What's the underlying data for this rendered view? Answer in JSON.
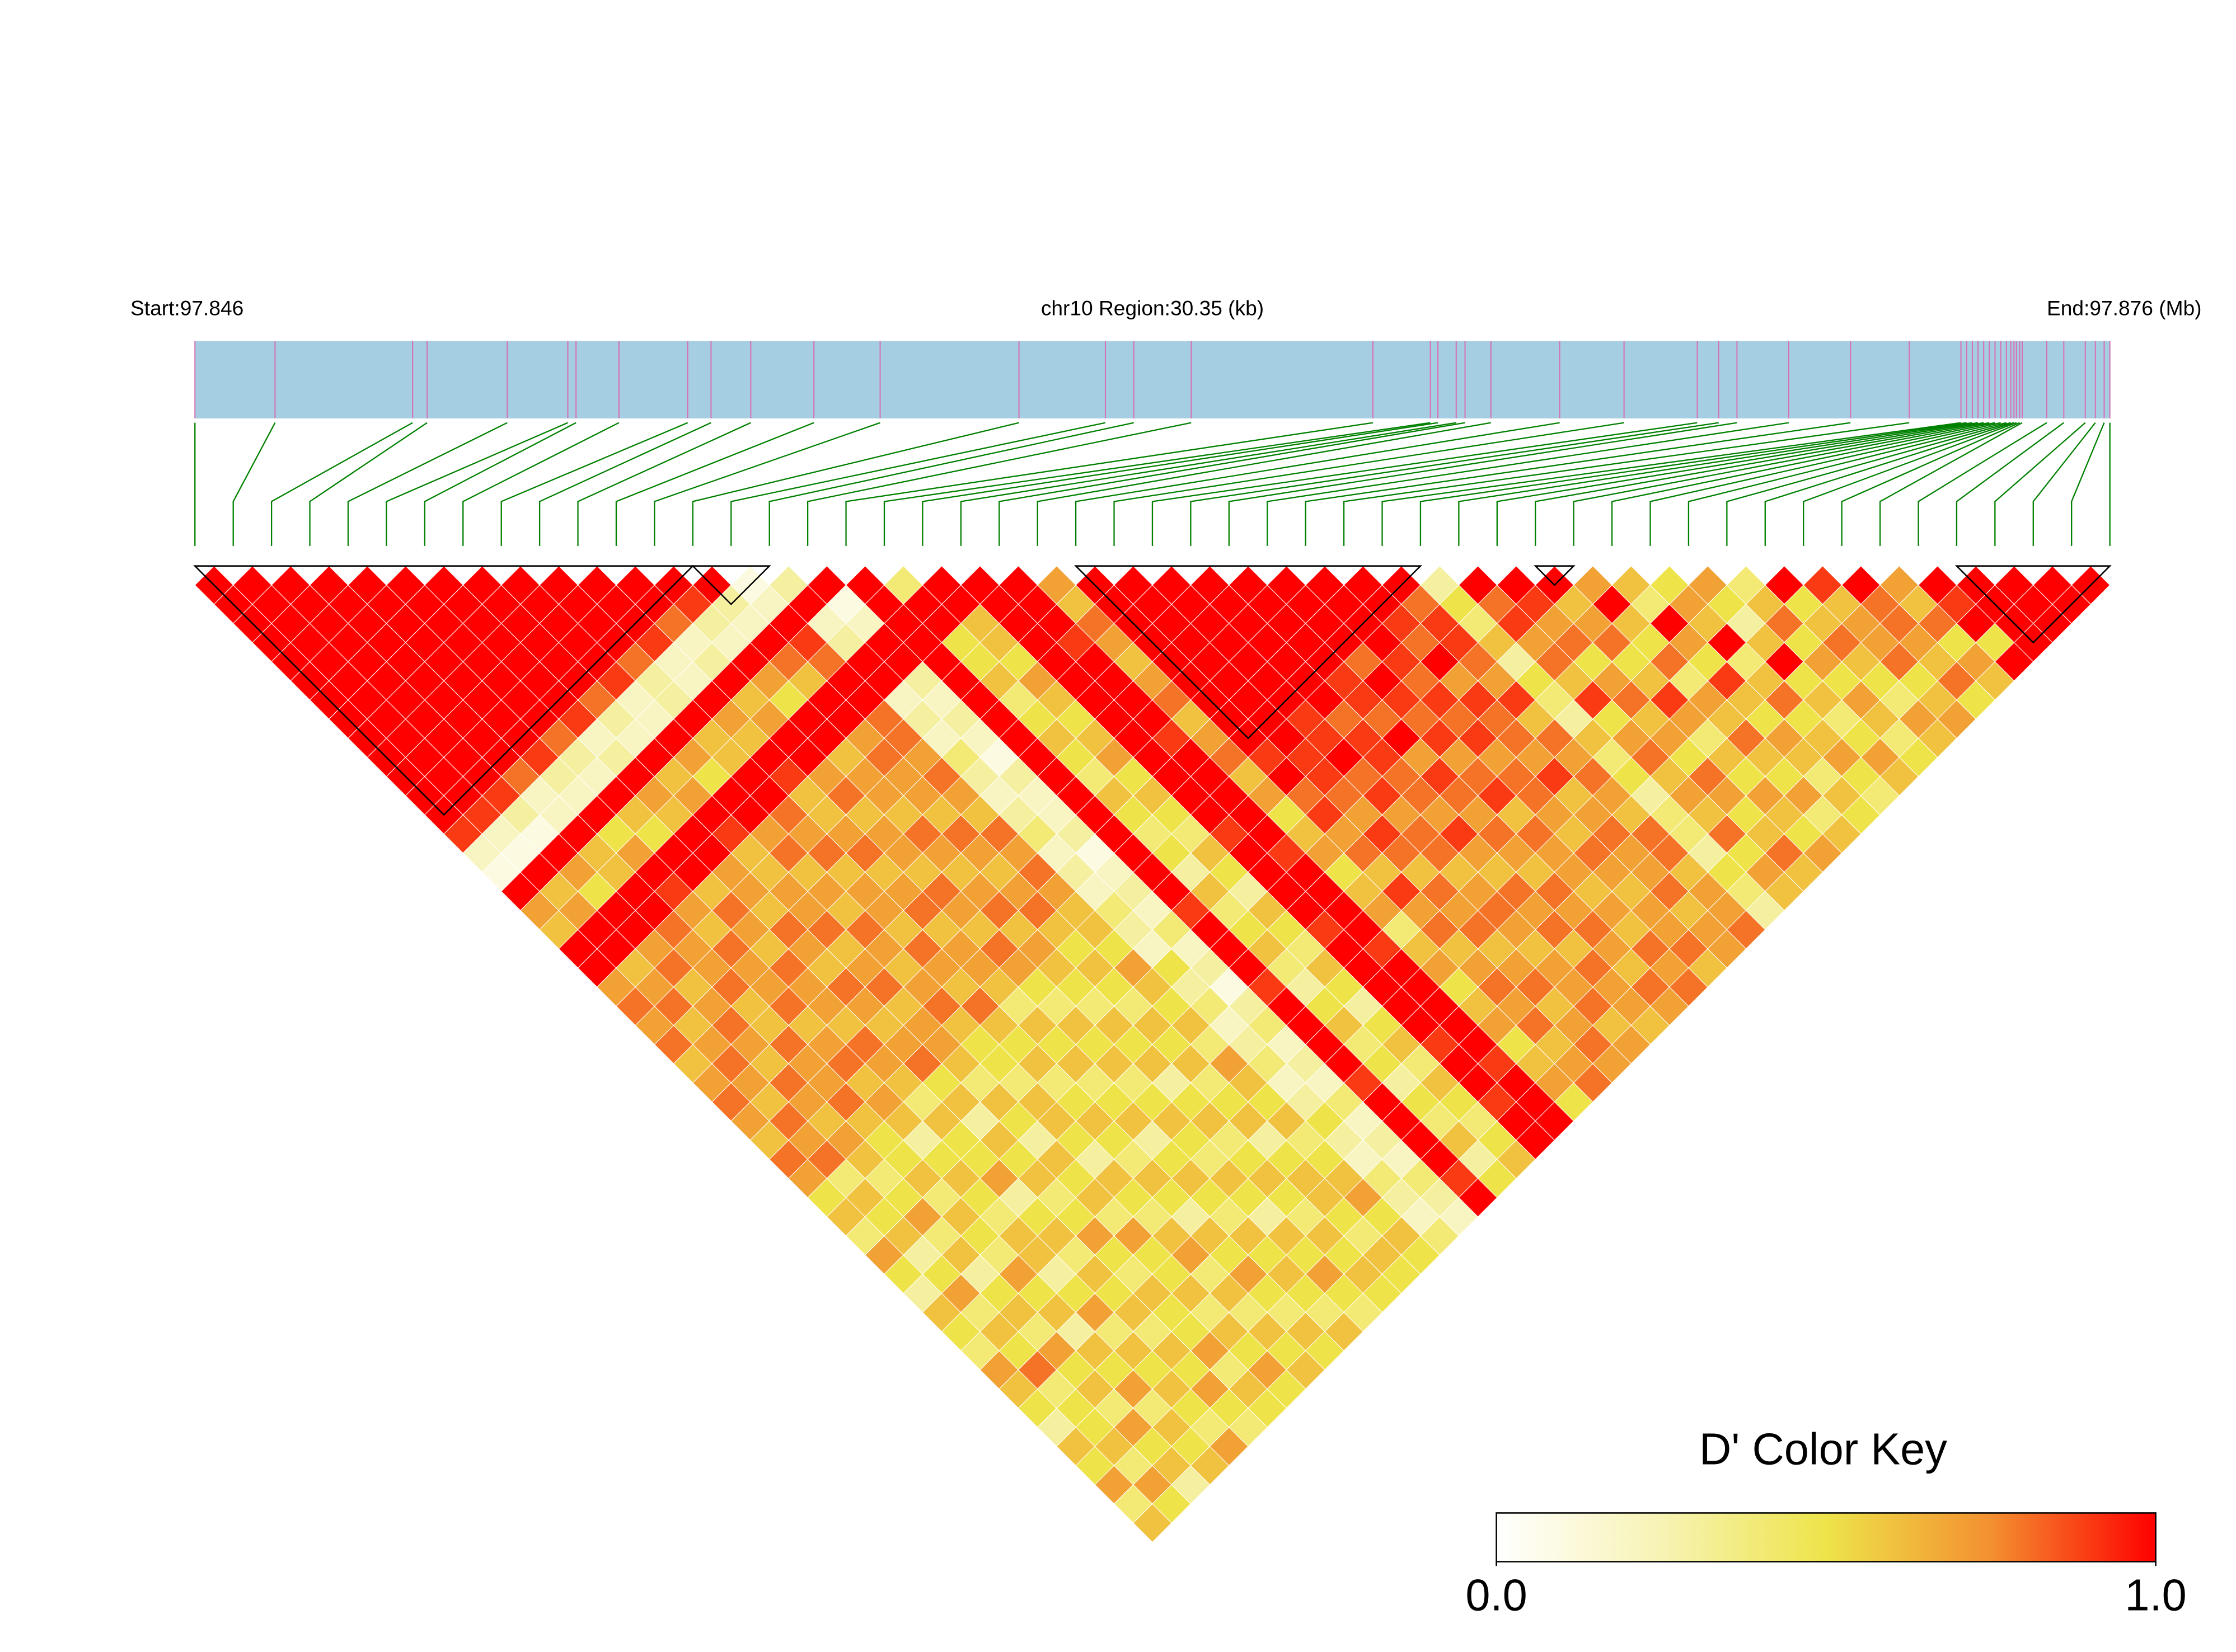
{
  "chart_data": {
    "type": "ldheatmap",
    "title": "chr10 Region:30.35 (kb)",
    "start_label": "Start:97.846",
    "end_label": "End:97.876 (Mb)",
    "xlim": [
      97.846,
      97.87635
    ],
    "positions": [
      97.846,
      97.84727,
      97.84945,
      97.84968,
      97.85095,
      97.85191,
      97.85204,
      97.85272,
      97.85381,
      97.85418,
      97.85481,
      97.85581,
      97.85686,
      97.85906,
      97.86043,
      97.86088,
      97.86179,
      97.86467,
      97.86558,
      97.8657,
      97.86599,
      97.86613,
      97.86654,
      97.86763,
      97.86865,
      97.86981,
      97.87015,
      97.87044,
      97.87126,
      97.87224,
      97.87317,
      97.87399,
      97.87408,
      97.87417,
      97.87426,
      97.87435,
      97.87444,
      97.87453,
      97.87462,
      97.87471,
      97.87478,
      97.87483,
      97.87487,
      97.87492,
      97.87496,
      97.87535,
      97.87562,
      97.87596,
      97.87612,
      97.87626,
      97.87635
    ],
    "bar_color": "#a6cee3",
    "snp_line_color": "#d670b4",
    "connector_color": "#008000",
    "color_scale": [
      "#ffffff",
      "#f7f3b4",
      "#eee44a",
      "#f39030",
      "#ff0000"
    ],
    "dprime": [
      [
        1,
        1,
        1,
        1,
        1,
        1,
        1,
        1,
        1,
        1,
        1,
        1,
        1,
        0.9,
        0.2,
        0.1,
        1,
        0.7,
        0.6,
        1,
        1,
        0.7,
        0.8,
        0.7,
        0.8,
        0.6,
        0.7,
        0.8,
        0.7,
        0.6,
        0.8,
        0.7,
        0.5,
        0.6,
        0.4,
        0.7,
        0.5,
        0.3,
        0.6,
        0.5,
        0.4,
        0.7,
        0.6,
        0.5,
        0.3,
        0.6,
        0.5,
        0.7,
        0.4,
        0.6
      ],
      [
        1,
        1,
        1,
        1,
        1,
        1,
        1,
        1,
        1,
        1,
        1,
        1,
        0.9,
        0.2,
        0.1,
        1,
        0.6,
        0.7,
        1,
        1,
        0.6,
        0.7,
        0.8,
        0.6,
        0.7,
        0.8,
        0.7,
        0.6,
        0.8,
        0.7,
        0.8,
        0.4,
        0.6,
        0.5,
        0.6,
        0.3,
        0.5,
        0.7,
        0.4,
        0.6,
        0.5,
        0.8,
        0.4,
        0.5,
        0.5,
        0.6,
        0.4,
        0.7,
        0.5
      ],
      [
        1,
        1,
        1,
        1,
        1,
        1,
        1,
        1,
        1,
        1,
        1,
        0.9,
        0.3,
        0.1,
        1,
        0.7,
        0.5,
        1,
        1,
        0.7,
        0.8,
        0.6,
        0.7,
        0.8,
        0.7,
        0.6,
        0.8,
        0.7,
        0.6,
        0.7,
        0.6,
        0.4,
        0.5,
        0.7,
        0.4,
        0.6,
        0.3,
        0.5,
        0.6,
        0.4,
        0.7,
        0.5,
        0.6,
        0.4,
        0.7,
        0.5,
        0.6,
        0.3
      ],
      [
        1,
        1,
        1,
        1,
        1,
        1,
        1,
        1,
        1,
        1,
        0.8,
        0.2,
        0.2,
        1,
        0.6,
        0.6,
        1,
        1,
        0.8,
        0.7,
        0.7,
        0.8,
        0.6,
        0.6,
        0.8,
        0.7,
        0.7,
        0.8,
        0.6,
        0.5,
        0.5,
        0.6,
        0.4,
        0.6,
        0.5,
        0.4,
        0.7,
        0.5,
        0.6,
        0.3,
        0.6,
        0.5,
        0.7,
        0.4,
        0.6,
        0.5,
        0.6
      ],
      [
        1,
        1,
        1,
        1,
        1,
        1,
        1,
        1,
        1,
        0.9,
        0.3,
        0.2,
        1,
        0.5,
        0.7,
        1,
        0.9,
        0.7,
        0.6,
        0.8,
        0.7,
        0.7,
        0.8,
        0.6,
        0.7,
        0.8,
        0.6,
        0.7,
        0.6,
        0.3,
        0.5,
        0.6,
        0.5,
        0.4,
        0.6,
        0.6,
        0.3,
        0.5,
        0.7,
        0.4,
        0.6,
        0.5,
        0.6,
        0.5,
        0.4,
        0.7
      ],
      [
        1,
        1,
        1,
        1,
        1,
        1,
        1,
        1,
        0.8,
        0.3,
        0.2,
        1,
        0.6,
        0.5,
        1,
        1,
        0.6,
        0.8,
        0.7,
        0.6,
        0.8,
        0.7,
        0.7,
        0.6,
        0.8,
        0.7,
        0.6,
        0.4,
        0.6,
        0.5,
        0.5,
        0.7,
        0.3,
        0.5,
        0.6,
        0.4,
        0.6,
        0.5,
        0.6,
        0.4,
        0.6,
        0.5,
        0.7,
        0.5,
        0.4
      ],
      [
        1,
        1,
        1,
        1,
        1,
        1,
        1,
        0.9,
        0.2,
        0.3,
        1,
        0.7,
        0.6,
        1,
        1,
        0.7,
        0.7,
        0.6,
        0.8,
        0.7,
        0.6,
        0.8,
        0.7,
        0.6,
        0.7,
        0.8,
        0.5,
        0.6,
        0.3,
        0.6,
        0.5,
        0.6,
        0.4,
        0.5,
        0.7,
        0.5,
        0.4,
        0.6,
        0.5,
        0.5,
        0.7,
        0.4,
        0.6,
        0.5
      ],
      [
        1,
        1,
        1,
        1,
        1,
        1,
        0.8,
        0.3,
        0.2,
        1,
        0.6,
        0.7,
        1,
        0.9,
        0.6,
        0.6,
        0.7,
        0.7,
        0.8,
        0.6,
        0.7,
        0.8,
        0.6,
        0.7,
        0.7,
        0.6,
        0.4,
        0.6,
        0.5,
        0.3,
        0.6,
        0.5,
        0.6,
        0.4,
        0.7,
        0.5,
        0.5,
        0.6,
        0.4,
        0.6,
        0.5,
        0.7,
        0.5
      ],
      [
        1,
        1,
        1,
        1,
        1,
        0.9,
        0.2,
        0.2,
        1,
        0.7,
        0.5,
        1,
        1,
        0.7,
        0.8,
        0.6,
        0.7,
        0.6,
        0.8,
        0.7,
        0.6,
        0.7,
        0.8,
        0.6,
        0.5,
        0.5,
        0.4,
        0.6,
        0.6,
        0.5,
        0.3,
        0.6,
        0.5,
        0.4,
        0.6,
        0.7,
        0.4,
        0.6,
        0.4,
        0.6,
        0.5,
        0.6
      ],
      [
        1,
        1,
        1,
        1,
        0.8,
        0.3,
        0.3,
        1,
        0.6,
        0.6,
        1,
        1,
        0.8,
        0.7,
        0.8,
        0.6,
        0.7,
        0.7,
        0.6,
        0.8,
        0.7,
        0.6,
        0.8,
        0.6,
        0.5,
        0.6,
        0.4,
        0.5,
        0.6,
        0.5,
        0.4,
        0.6,
        0.5,
        0.3,
        0.6,
        0.5,
        0.7,
        0.5,
        0.4,
        0.6,
        0.5
      ],
      [
        1,
        1,
        1,
        0.9,
        0.2,
        0.2,
        1,
        0.7,
        0.6,
        1,
        0.9,
        0.6,
        0.6,
        0.7,
        0.8,
        0.6,
        0.7,
        0.8,
        0.6,
        0.7,
        0.7,
        0.6,
        0.4,
        0.6,
        0.5,
        0.6,
        0.4,
        0.5,
        0.6,
        0.3,
        0.5,
        0.6,
        0.5,
        0.4,
        0.6,
        0.5,
        0.6,
        0.5,
        0.4,
        0.6
      ],
      [
        1,
        1,
        0.8,
        0.2,
        0.3,
        1,
        0.6,
        0.7,
        1,
        1,
        0.7,
        0.8,
        0.6,
        0.7,
        0.7,
        0.6,
        0.8,
        0.7,
        0.6,
        0.8,
        0.7,
        0.5,
        0.4,
        0.6,
        0.5,
        0.6,
        0.4,
        0.5,
        0.6,
        0.5,
        0.4,
        0.6,
        0.5,
        0.3,
        0.6,
        0.5,
        0.7,
        0.5,
        0.4
      ],
      [
        1,
        0.9,
        0.3,
        0.2,
        1,
        0.7,
        0.5,
        1,
        1,
        0.6,
        0.7,
        0.7,
        0.6,
        0.8,
        0.7,
        0.6,
        0.7,
        0.8,
        0.6,
        0.7,
        0.6,
        0.5,
        0.4,
        0.6,
        0.5,
        0.6,
        0.3,
        0.5,
        0.6,
        0.4,
        0.5,
        0.6,
        0.5,
        0.4,
        0.6,
        0.5,
        0.6,
        0.5
      ],
      [
        1,
        0.3,
        0.2,
        1,
        0.8,
        0.6,
        1,
        1,
        0.7,
        0.8,
        0.7,
        0.7,
        0.6,
        0.8,
        0.7,
        0.6,
        0.7,
        0.8,
        0.6,
        0.5,
        0.6,
        0.5,
        0.4,
        0.6,
        0.5,
        0.6,
        0.4,
        0.5,
        0.6,
        0.3,
        0.5,
        0.6,
        0.6,
        0.5,
        0.4,
        0.6,
        0.5
      ],
      [
        0.1,
        0.2,
        1,
        0.9,
        0.8,
        1,
        1,
        0.8,
        0.8,
        0.7,
        0.8,
        0.7,
        0.6,
        0.8,
        0.7,
        0.8,
        0.7,
        0.6,
        0.6,
        0.5,
        0.7,
        0.6,
        0.5,
        0.6,
        0.4,
        0.7,
        0.6,
        0.5,
        0.6,
        0.4,
        0.5,
        0.6,
        0.7,
        0.5,
        0.6,
        0.5
      ],
      [
        0.3,
        1,
        0.2,
        0.3,
        1,
        1,
        0.2,
        0.3,
        0.2,
        0.4,
        0.3,
        0.2,
        0.3,
        0.4,
        0.2,
        0.3,
        0.2,
        0.4,
        0.3,
        0.2,
        0.5,
        0.3,
        0.4,
        0.2,
        0.3,
        0.4,
        0.2,
        0.3,
        0.5,
        0.3,
        0.2,
        0.4,
        0.3,
        0.2,
        0.4
      ],
      [
        1,
        0.1,
        0.2,
        1,
        1,
        0.3,
        0.2,
        0.3,
        0.2,
        0.1,
        0.3,
        0.2,
        0.2,
        0.3,
        0.1,
        0.2,
        0.3,
        0.2,
        0.4,
        0.2,
        0.3,
        0.1,
        0.3,
        0.4,
        0.2,
        0.3,
        0.2,
        0.4,
        0.2,
        0.3,
        0.2,
        0.4,
        0.3,
        0.2
      ],
      [
        1,
        1,
        1,
        1,
        1,
        1,
        1,
        1,
        1,
        1,
        1,
        1,
        1,
        1,
        1,
        1,
        1,
        0.9,
        1,
        1,
        1,
        0.9,
        1,
        1,
        1,
        1,
        0.9,
        1,
        1,
        1,
        1,
        0.9,
        1
      ],
      [
        0.4,
        1,
        1,
        0.5,
        0.5,
        0.6,
        0.4,
        0.5,
        0.6,
        0.5,
        0.4,
        0.6,
        0.5,
        0.4,
        0.5,
        0.3,
        0.6,
        0.4,
        0.5,
        0.6,
        0.4,
        0.3,
        0.5,
        0.6,
        0.4,
        0.5,
        0.3,
        0.5,
        0.4,
        0.6,
        0.3,
        0.5
      ],
      [
        1,
        1,
        0.6,
        0.6,
        0.5,
        0.7,
        0.6,
        0.5,
        0.6,
        0.7,
        0.5,
        0.6,
        0.5,
        0.4,
        0.6,
        0.5,
        0.3,
        0.6,
        0.5,
        0.4,
        0.6,
        0.5,
        0.3,
        0.5,
        0.6,
        0.4,
        0.6,
        0.5,
        0.4,
        0.5,
        0.6
      ],
      [
        1,
        1,
        1,
        1,
        1,
        1,
        1,
        1,
        1,
        1,
        1,
        1,
        1,
        0.9,
        1,
        1,
        1,
        1,
        0.9,
        1,
        1,
        1,
        1,
        1,
        0.9,
        1,
        1,
        0.9,
        1,
        1
      ],
      [
        1,
        1,
        1,
        0.9,
        1,
        1,
        1,
        1,
        0.9,
        1,
        1,
        1,
        1,
        1,
        0.9,
        1,
        1,
        1,
        1,
        0.9,
        1,
        1,
        1,
        1,
        1,
        0.9,
        1,
        1,
        1
      ],
      [
        0.7,
        0.6,
        0.8,
        0.7,
        0.6,
        0.7,
        0.8,
        0.6,
        0.7,
        0.8,
        0.6,
        0.7,
        0.5,
        0.6,
        0.7,
        0.5,
        0.6,
        0.7,
        0.4,
        0.6,
        0.7,
        0.5,
        0.6,
        0.7,
        0.5,
        0.6,
        0.7,
        0.5
      ],
      [
        1,
        1,
        1,
        1,
        1,
        1,
        1,
        1,
        1,
        0.9,
        1,
        0.8,
        0.9,
        0.7,
        0.8,
        0.6,
        0.9,
        0.7,
        0.8,
        0.6,
        0.7,
        0.8,
        0.7,
        0.8,
        0.6,
        0.7,
        0.8
      ],
      [
        1,
        1,
        1,
        1,
        1,
        1,
        1,
        1,
        1,
        0.9,
        0.9,
        0.8,
        0.7,
        0.9,
        0.8,
        0.6,
        0.8,
        0.7,
        0.8,
        0.6,
        0.7,
        0.8,
        0.6,
        0.7,
        0.8,
        0.7
      ],
      [
        1,
        1,
        1,
        1,
        1,
        1,
        1,
        0.9,
        0.9,
        1,
        0.8,
        0.9,
        0.7,
        0.8,
        0.8,
        0.6,
        0.7,
        0.8,
        0.7,
        0.6,
        0.7,
        0.7,
        0.8,
        0.6,
        0.7
      ],
      [
        1,
        1,
        1,
        1,
        1,
        1,
        1,
        0.8,
        0.9,
        0.9,
        0.8,
        0.8,
        0.7,
        0.9,
        0.7,
        0.6,
        0.8,
        0.7,
        0.8,
        0.6,
        0.8,
        0.7,
        0.7,
        0.6
      ],
      [
        1,
        1,
        1,
        1,
        1,
        0.9,
        0.9,
        0.8,
        1,
        0.7,
        0.9,
        0.8,
        0.7,
        0.8,
        0.7,
        0.6,
        0.8,
        0.7,
        0.8,
        0.7,
        0.6,
        0.8,
        0.7
      ],
      [
        1,
        1,
        1,
        1,
        0.8,
        1,
        0.9,
        0.8,
        0.9,
        0.7,
        0.8,
        0.9,
        0.6,
        0.8,
        0.7,
        0.7,
        0.6,
        0.7,
        0.6,
        0.8,
        0.7,
        0.8
      ],
      [
        1,
        1,
        1,
        1,
        0.9,
        0.8,
        0.9,
        0.8,
        0.9,
        0.7,
        0.8,
        0.8,
        0.7,
        0.6,
        0.8,
        0.7,
        0.6,
        0.7,
        0.7,
        0.8,
        0.6
      ],
      [
        1,
        1,
        0.9,
        0.8,
        1,
        0.7,
        0.9,
        0.8,
        0.8,
        0.7,
        0.9,
        0.6,
        0.7,
        0.8,
        0.7,
        0.7,
        0.8,
        0.6,
        0.7,
        0.7
      ],
      [
        1,
        0.8,
        0.9,
        0.9,
        0.8,
        0.7,
        0.9,
        0.6,
        0.8,
        0.7,
        0.8,
        0.7,
        0.6,
        0.8,
        0.8,
        0.6,
        0.7,
        0.7,
        0.8
      ],
      [
        0.3,
        0.5,
        0.4,
        0.6,
        0.3,
        0.5,
        0.4,
        0.3,
        0.6,
        0.4,
        0.5,
        0.3,
        0.4,
        0.4,
        0.3,
        0.5,
        0.4,
        0.3
      ],
      [
        1,
        0.8,
        0.9,
        0.7,
        0.8,
        0.6,
        0.9,
        0.5,
        0.7,
        0.8,
        0.6,
        0.7,
        0.6,
        0.8,
        0.5,
        0.7,
        0.6
      ],
      [
        1,
        0.9,
        0.7,
        0.8,
        0.5,
        0.7,
        0.8,
        0.6,
        0.7,
        0.5,
        0.8,
        0.7,
        0.5,
        0.6,
        0.8,
        0.6
      ],
      [
        1,
        0.6,
        0.7,
        0.8,
        0.5,
        0.6,
        0.9,
        0.7,
        0.4,
        0.6,
        0.5,
        0.7,
        0.6,
        0.5,
        0.7
      ],
      [
        0.7,
        1,
        0.6,
        0.5,
        0.8,
        0.4,
        0.7,
        0.6,
        0.8,
        0.6,
        0.5,
        0.7,
        0.4,
        0.6
      ],
      [
        0.6,
        0.4,
        1,
        0.7,
        0.5,
        0.9,
        0.6,
        0.5,
        0.7,
        0.6,
        0.4,
        0.6,
        0.5
      ],
      [
        0.5,
        0.7,
        0.6,
        1,
        0.4,
        0.6,
        0.8,
        0.5,
        0.6,
        0.7,
        0.5,
        0.4
      ],
      [
        0.7,
        0.5,
        0.3,
        0.6,
        1,
        0.5,
        0.6,
        0.4,
        0.5,
        0.7,
        0.6
      ],
      [
        0.4,
        0.6,
        0.8,
        0.5,
        0.7,
        0.5,
        0.7,
        0.6,
        0.4,
        0.5
      ],
      [
        1,
        0.5,
        0.6,
        0.8,
        0.6,
        0.5,
        0.4,
        0.7,
        0.6
      ],
      [
        0.9,
        0.6,
        0.7,
        0.7,
        0.8,
        0.5,
        0.6,
        0.7
      ],
      [
        1,
        0.8,
        0.8,
        0.7,
        0.6,
        0.8,
        0.5
      ],
      [
        0.7,
        0.6,
        0.8,
        0.5,
        0.7,
        0.6
      ],
      [
        1,
        0.9,
        1,
        0.5,
        1
      ],
      [
        1,
        1,
        1,
        1
      ],
      [
        1,
        1,
        1
      ],
      [
        1,
        1
      ],
      [
        1
      ]
    ],
    "blocks": [
      [
        0,
        13
      ],
      [
        13,
        15
      ],
      [
        23,
        32
      ],
      [
        35,
        36
      ],
      [
        46,
        50
      ]
    ],
    "color_key": {
      "title": "D' Color Key",
      "lim": [
        0,
        1
      ],
      "ticks": [
        {
          "value": 0,
          "label": "0.0"
        },
        {
          "value": 1,
          "label": "1.0"
        }
      ]
    }
  }
}
